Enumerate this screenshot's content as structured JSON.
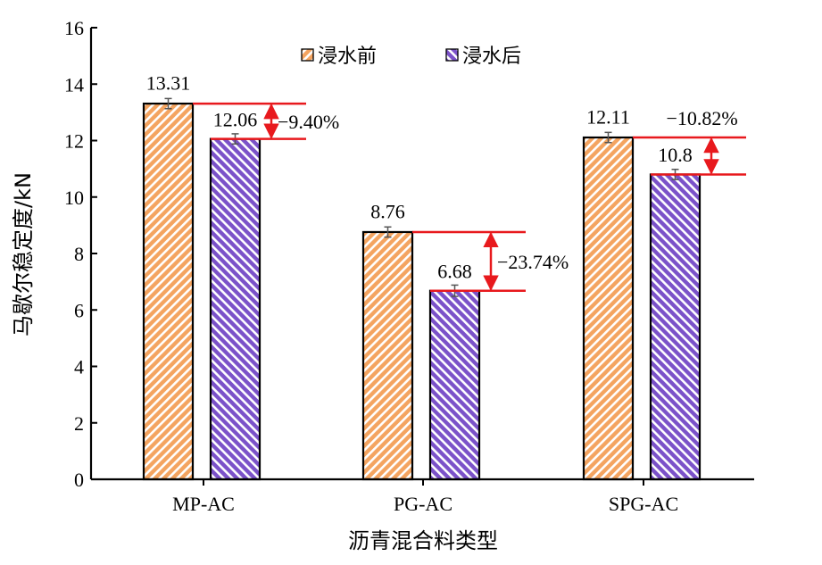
{
  "chart_data": {
    "type": "bar",
    "xlabel": "沥青混合料类型",
    "ylabel": "马歇尔稳定度/kN",
    "ylim": [
      0,
      16
    ],
    "yticks": [
      0,
      2,
      4,
      6,
      8,
      10,
      12,
      14,
      16
    ],
    "categories": [
      "MP-AC",
      "PG-AC",
      "SPG-AC"
    ],
    "series": [
      {
        "name": "浸水前",
        "values": [
          13.31,
          8.76,
          12.11
        ],
        "value_labels": [
          "13.31",
          "8.76",
          "12.11"
        ],
        "errors": [
          0.18,
          0.18,
          0.18
        ],
        "color": "#f4a460",
        "hatch_color": "#ffffff"
      },
      {
        "name": "浸水后",
        "values": [
          12.06,
          6.68,
          10.8
        ],
        "value_labels": [
          "12.06",
          "6.68",
          "10.8"
        ],
        "errors": [
          0.18,
          0.2,
          0.18
        ],
        "color": "#7b52c9",
        "hatch_color": "#ffffff"
      }
    ],
    "changes": [
      "−9.40%",
      "−23.74%",
      "−10.82%"
    ],
    "legend_position": "top",
    "grid": false,
    "colors": {
      "reference_line": "#e8191d",
      "arrow": "#e8191d",
      "change_text": "#1f1fd6",
      "axis": "#000000"
    }
  }
}
